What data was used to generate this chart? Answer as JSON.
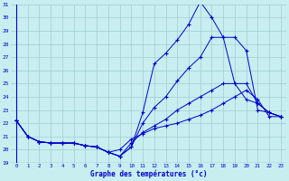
{
  "xlabel": "Graphe des températures (°c)",
  "background_color": "#c8eef0",
  "grid_color": "#a0ccd0",
  "line_color": "#0000cc",
  "xlim": [
    -0.5,
    23.5
  ],
  "ylim": [
    19,
    31
  ],
  "yticks": [
    19,
    20,
    21,
    22,
    23,
    24,
    25,
    26,
    27,
    28,
    29,
    30,
    31
  ],
  "xticks": [
    0,
    1,
    2,
    3,
    4,
    5,
    6,
    7,
    8,
    9,
    10,
    11,
    12,
    13,
    14,
    15,
    16,
    17,
    18,
    19,
    20,
    21,
    22,
    23
  ],
  "series": [
    [
      22.2,
      21.0,
      20.6,
      20.5,
      20.5,
      20.5,
      20.3,
      20.2,
      19.8,
      19.5,
      20.2,
      22.8,
      26.5,
      27.3,
      28.3,
      29.5,
      31.2,
      30.0,
      28.5,
      28.5,
      27.5,
      23.0,
      22.8,
      22.5
    ],
    [
      22.2,
      21.0,
      20.6,
      20.5,
      20.5,
      20.5,
      20.3,
      20.2,
      19.8,
      19.5,
      20.2,
      22.0,
      23.2,
      24.0,
      25.2,
      26.2,
      27.0,
      28.5,
      28.5,
      25.0,
      23.8,
      23.5,
      22.8,
      22.5
    ],
    [
      22.2,
      21.0,
      20.6,
      20.5,
      20.5,
      20.5,
      20.3,
      20.2,
      19.8,
      19.5,
      20.5,
      21.3,
      21.8,
      22.3,
      23.0,
      23.5,
      24.0,
      24.5,
      25.0,
      25.0,
      25.0,
      23.5,
      22.8,
      22.5
    ],
    [
      22.2,
      21.0,
      20.6,
      20.5,
      20.5,
      20.5,
      20.3,
      20.2,
      19.8,
      20.0,
      20.8,
      21.2,
      21.6,
      21.8,
      22.0,
      22.3,
      22.6,
      23.0,
      23.5,
      24.0,
      24.5,
      23.8,
      22.5,
      22.5
    ]
  ]
}
